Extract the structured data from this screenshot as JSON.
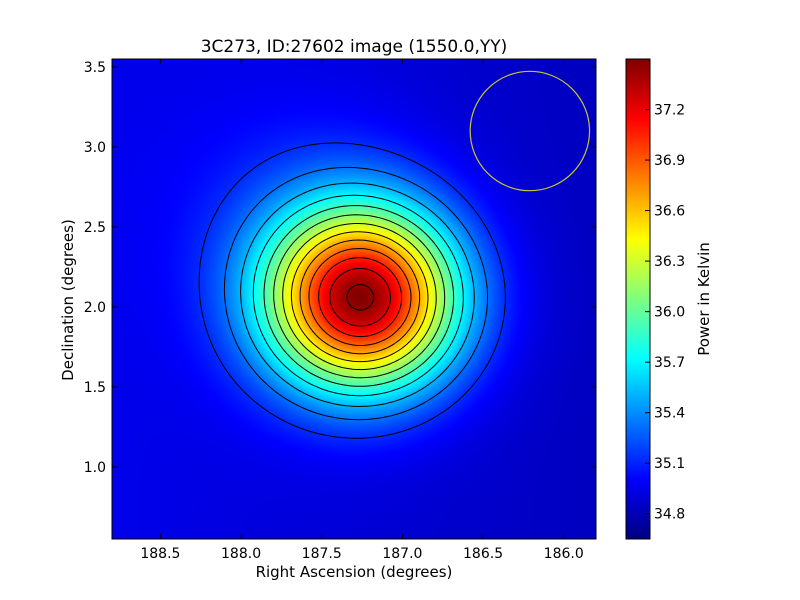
{
  "chart_data": {
    "type": "heatmap",
    "title": "3C273, ID:27602 image (1550.0,YY)",
    "xlabel": "Right Ascension (degrees)",
    "ylabel": "Declination (degrees)",
    "colorbar_label": "Power in Kelvin",
    "xlim": [
      188.8,
      185.8
    ],
    "ylim": [
      0.55,
      3.55
    ],
    "x_ticks": [
      {
        "value": 188.5,
        "label": "188.5"
      },
      {
        "value": 188.0,
        "label": "188.0"
      },
      {
        "value": 187.5,
        "label": "187.5"
      },
      {
        "value": 187.0,
        "label": "187.0"
      },
      {
        "value": 186.5,
        "label": "186.5"
      },
      {
        "value": 186.0,
        "label": "186.0"
      }
    ],
    "y_ticks": [
      {
        "value": 1.0,
        "label": "1.0"
      },
      {
        "value": 1.5,
        "label": "1.5"
      },
      {
        "value": 2.0,
        "label": "2.0"
      },
      {
        "value": 2.5,
        "label": "2.5"
      },
      {
        "value": 3.0,
        "label": "3.0"
      },
      {
        "value": 3.5,
        "label": "3.5"
      }
    ],
    "colorbar_range": [
      34.65,
      37.5
    ],
    "colorbar_ticks": [
      {
        "value": 34.8,
        "label": "34.8"
      },
      {
        "value": 35.1,
        "label": "35.1"
      },
      {
        "value": 35.4,
        "label": "35.4"
      },
      {
        "value": 35.7,
        "label": "35.7"
      },
      {
        "value": 36.0,
        "label": "36.0"
      },
      {
        "value": 36.3,
        "label": "36.3"
      },
      {
        "value": 36.6,
        "label": "36.6"
      },
      {
        "value": 36.9,
        "label": "36.9"
      },
      {
        "value": 37.2,
        "label": "37.2"
      }
    ],
    "colormap": "jet",
    "source_peak": {
      "ra": 187.25,
      "dec": 2.05,
      "value": 37.45
    },
    "background_level": 34.95,
    "beam_circle": {
      "ra": 186.21,
      "dec": 3.1,
      "radius_deg": 0.37,
      "color": "#c8c832"
    },
    "contour_color": "#000000"
  }
}
